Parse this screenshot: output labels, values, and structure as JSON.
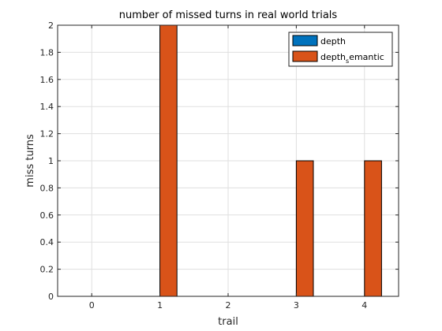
{
  "chart_data": {
    "type": "bar",
    "title": "number of missed turns in real world trials",
    "xlabel": "trail",
    "ylabel": "miss turns",
    "categories": [
      0,
      1,
      2,
      3,
      4
    ],
    "xlim": [
      -0.5,
      4.5
    ],
    "ylim": [
      0,
      2
    ],
    "xticks": [
      "0",
      "1",
      "2",
      "3",
      "4"
    ],
    "yticks": [
      "0",
      "0.2",
      "0.4",
      "0.6",
      "0.8",
      "1",
      "1.2",
      "1.4",
      "1.6",
      "1.8",
      "2"
    ],
    "grid": true,
    "legend_position": "top-right",
    "series": [
      {
        "name": "depth",
        "color": "#0072BD",
        "values": [
          0,
          0,
          0,
          0,
          0
        ]
      },
      {
        "name": "depth_semantic",
        "legend_main": "depth",
        "legend_sub": "s",
        "legend_rest": "emantic",
        "color": "#D95319",
        "values": [
          0,
          2,
          0,
          1,
          1
        ]
      }
    ]
  }
}
